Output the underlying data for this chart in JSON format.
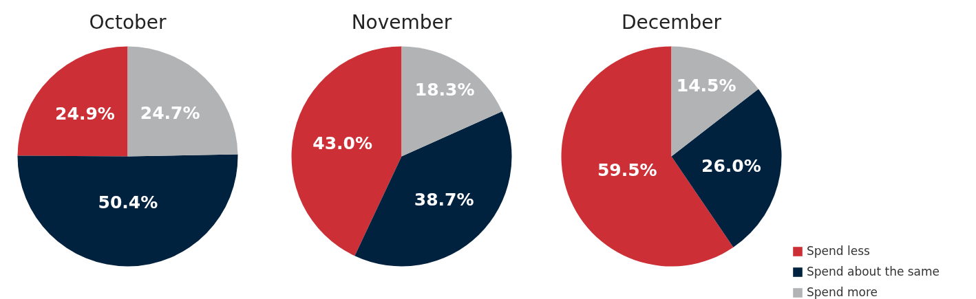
{
  "chart_data": [
    {
      "type": "pie",
      "title": "October",
      "categories": [
        "Spend less",
        "Spend about the same",
        "Spend more"
      ],
      "values": [
        24.9,
        50.4,
        24.7
      ],
      "value_labels": [
        "24.9%",
        "50.4%",
        "24.7%"
      ],
      "colors": [
        "#cc2f35",
        "#00223f",
        "#b1b3b5"
      ],
      "legend": "bottom right"
    },
    {
      "type": "pie",
      "title": "November",
      "categories": [
        null,
        null,
        null
      ],
      "values": [
        43.0,
        38.7,
        18.3
      ],
      "value_labels": [
        "43.0%",
        "38.7%",
        "18.3%"
      ],
      "colors": [
        "#cc2f35",
        "#00223f",
        "#b1b3b5"
      ]
    },
    {
      "type": "pie",
      "title": "December",
      "categories": [
        null,
        null,
        null
      ],
      "values": [
        59.5,
        26.0,
        14.5
      ],
      "value_labels": [
        "59.5%",
        "26.0%",
        "14.5%"
      ],
      "colors": [
        "#cc2f35",
        "#00223f",
        "#b1b3b5"
      ]
    }
  ]
}
